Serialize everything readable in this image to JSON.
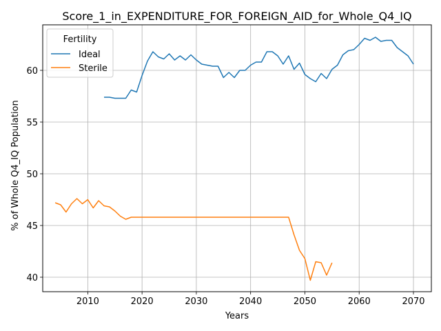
{
  "chart_data": {
    "type": "line",
    "title": "Score_1_in_EXPENDITURE_FOR_FOREIGN_AID_for_Whole_Q4_IQ",
    "xlabel": "Years",
    "ylabel": "% of Whole Q4_IQ Population",
    "xlim": [
      2001.7,
      2073.3
    ],
    "ylim": [
      38.6,
      64.4
    ],
    "xticks": [
      2010,
      2020,
      2030,
      2040,
      2050,
      2060,
      2070
    ],
    "yticks": [
      40,
      45,
      50,
      55,
      60
    ],
    "grid": true,
    "legend": {
      "title": "Fertility",
      "placement": "top-left"
    },
    "series": [
      {
        "name": "Ideal",
        "color": "#1f77b4",
        "x": [
          2013,
          2014,
          2015,
          2016,
          2017,
          2018,
          2019,
          2020,
          2021,
          2022,
          2023,
          2024,
          2025,
          2026,
          2027,
          2028,
          2029,
          2030,
          2031,
          2032,
          2033,
          2034,
          2035,
          2036,
          2037,
          2038,
          2039,
          2040,
          2041,
          2042,
          2043,
          2044,
          2045,
          2046,
          2047,
          2048,
          2049,
          2050,
          2051,
          2052,
          2053,
          2054,
          2055,
          2056,
          2057,
          2058,
          2059,
          2060,
          2061,
          2062,
          2063,
          2064,
          2065,
          2066,
          2067,
          2068,
          2069,
          2070
        ],
        "y": [
          57.4,
          57.4,
          57.3,
          57.3,
          57.3,
          58.1,
          57.9,
          59.5,
          60.9,
          61.8,
          61.3,
          61.1,
          61.6,
          61.0,
          61.4,
          61.0,
          61.5,
          61.0,
          60.6,
          60.5,
          60.4,
          60.4,
          59.3,
          59.8,
          59.3,
          60.0,
          60.0,
          60.5,
          60.8,
          60.8,
          61.8,
          61.8,
          61.4,
          60.6,
          61.4,
          60.1,
          60.7,
          59.6,
          59.2,
          58.9,
          59.7,
          59.2,
          60.1,
          60.5,
          61.5,
          61.9,
          62.0,
          62.5,
          63.1,
          62.9,
          63.2,
          62.8,
          62.9,
          62.9,
          62.2,
          61.8,
          61.4,
          60.6
        ]
      },
      {
        "name": "Sterile",
        "color": "#ff7f0e",
        "x": [
          2004,
          2005,
          2006,
          2007,
          2008,
          2009,
          2010,
          2011,
          2012,
          2013,
          2014,
          2015,
          2016,
          2017,
          2018,
          2019,
          2020,
          2021,
          2022,
          2023,
          2024,
          2025,
          2026,
          2027,
          2028,
          2029,
          2030,
          2031,
          2032,
          2033,
          2034,
          2035,
          2036,
          2037,
          2038,
          2039,
          2040,
          2041,
          2042,
          2043,
          2044,
          2045,
          2046,
          2047,
          2048,
          2049,
          2050,
          2051,
          2052,
          2053,
          2054,
          2055
        ],
        "y": [
          47.2,
          47.0,
          46.3,
          47.1,
          47.6,
          47.1,
          47.5,
          46.7,
          47.4,
          46.9,
          46.8,
          46.4,
          45.9,
          45.6,
          45.8,
          45.8,
          45.8,
          45.8,
          45.8,
          45.8,
          45.8,
          45.8,
          45.8,
          45.8,
          45.8,
          45.8,
          45.8,
          45.8,
          45.8,
          45.8,
          45.8,
          45.8,
          45.8,
          45.8,
          45.8,
          45.8,
          45.8,
          45.8,
          45.8,
          45.8,
          45.8,
          45.8,
          45.8,
          45.8,
          44.1,
          42.6,
          41.8,
          39.7,
          41.5,
          41.4,
          40.2,
          41.4
        ]
      }
    ]
  }
}
